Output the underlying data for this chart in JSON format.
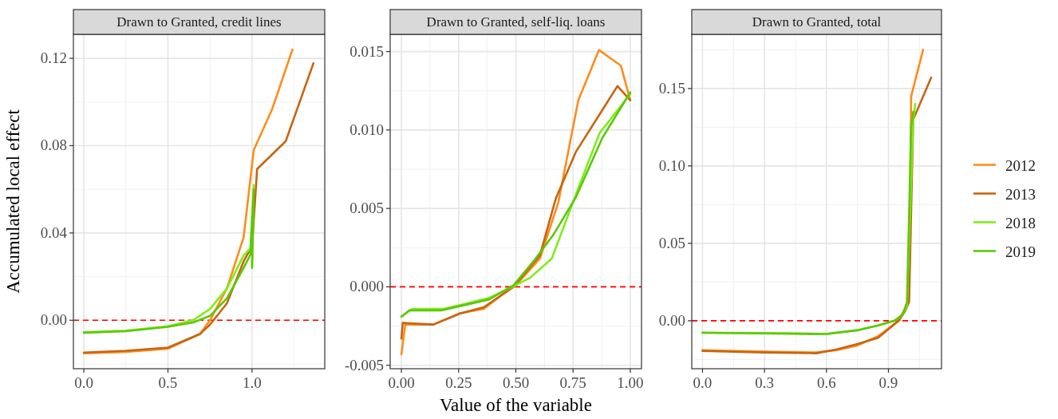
{
  "chart_data": [
    {
      "type": "line",
      "title": "Drawn to Granted, credit lines",
      "ylabel": "Accumulated local effect",
      "xlim": [
        -0.062,
        1.432
      ],
      "ylim": [
        -0.0222,
        0.131
      ],
      "xticks": [
        {
          "value": 0,
          "label": "0.0"
        },
        {
          "value": 0.5,
          "label": "0.5"
        },
        {
          "value": 1,
          "label": "1.0"
        }
      ],
      "yticks": [
        {
          "value": 0,
          "label": "0.00"
        },
        {
          "value": 0.04,
          "label": "0.04"
        },
        {
          "value": 0.08,
          "label": "0.08"
        },
        {
          "value": 0.12,
          "label": "0.12"
        }
      ],
      "grid": true,
      "legend": false,
      "ref_lines": [
        {
          "axis": "y",
          "value": 0,
          "color": "#ff0000",
          "line_style": "dashed"
        }
      ],
      "series": [
        {
          "color": "#ff8c1a",
          "x": [
            0,
            0.25,
            0.5,
            0.69,
            0.75,
            0.85,
            0.95,
            1.01,
            1.12,
            1.24
          ],
          "values": [
            -0.0151,
            -0.0145,
            -0.013,
            -0.0063,
            0,
            0.0145,
            0.038,
            0.078,
            0.0968,
            0.124
          ]
        },
        {
          "color": "#c8650f",
          "x": [
            0,
            0.25,
            0.5,
            0.69,
            0.75,
            0.85,
            0.95,
            1.0,
            1.03,
            1.2,
            1.365
          ],
          "values": [
            -0.0148,
            -0.014,
            -0.0125,
            -0.0063,
            -0.002,
            0.0077,
            0.027,
            0.034,
            0.0693,
            0.082,
            0.1178
          ]
        },
        {
          "color": "#80ec1a",
          "x": [
            0,
            0.25,
            0.5,
            0.65,
            0.75,
            0.85,
            0.95,
            0.99,
            1.01,
            1.0
          ],
          "values": [
            -0.0055,
            -0.0048,
            -0.0027,
            0,
            0.0052,
            0.0145,
            0.0297,
            0.033,
            0.062,
            0.025
          ]
        },
        {
          "color": "#5cc80a",
          "x": [
            0,
            0.25,
            0.5,
            0.65,
            0.75,
            0.85,
            0.95,
            0.99,
            1.01,
            1.0
          ],
          "values": [
            -0.0057,
            -0.005,
            -0.003,
            -0.001,
            0.002,
            0.01,
            0.024,
            0.03,
            0.06,
            0.024
          ]
        }
      ]
    },
    {
      "type": "line",
      "title": "Drawn to Granted, self-liq. loans",
      "xlabel": "Value of the variable",
      "xlim": [
        -0.049,
        1.049
      ],
      "ylim": [
        -0.00522,
        0.0161
      ],
      "xticks": [
        {
          "value": 0,
          "label": "0.00"
        },
        {
          "value": 0.25,
          "label": "0.25"
        },
        {
          "value": 0.5,
          "label": "0.50"
        },
        {
          "value": 0.75,
          "label": "0.75"
        },
        {
          "value": 1,
          "label": "1.00"
        }
      ],
      "yticks": [
        {
          "value": -0.005,
          "label": "-0.005"
        },
        {
          "value": 0,
          "label": "0.000"
        },
        {
          "value": 0.005,
          "label": "0.005"
        },
        {
          "value": 0.01,
          "label": "0.010"
        },
        {
          "value": 0.015,
          "label": "0.015"
        }
      ],
      "grid": true,
      "legend": false,
      "ref_lines": [
        {
          "axis": "y",
          "value": 0,
          "color": "#ff0000",
          "line_style": "dashed"
        }
      ],
      "series": [
        {
          "color": "#ff8c1a",
          "x": [
            0,
            0.017,
            0.14,
            0.256,
            0.36,
            0.44,
            0.5,
            0.605,
            0.686,
            0.773,
            0.863,
            0.959,
            1.0
          ],
          "values": [
            -0.0043,
            -0.0024,
            -0.0024,
            -0.0017,
            -0.0014,
            -0.0005,
            0.0001,
            0.0018,
            0.0054,
            0.0119,
            0.0151,
            0.0141,
            0.0119
          ]
        },
        {
          "color": "#c8650f",
          "x": [
            0,
            0.006,
            0.14,
            0.256,
            0.36,
            0.49,
            0.605,
            0.674,
            0.762,
            0.944,
            1.0
          ],
          "values": [
            -0.0033,
            -0.0023,
            -0.0024,
            -0.0017,
            -0.0013,
            0,
            0.002,
            0.0056,
            0.0086,
            0.0128,
            0.0119
          ]
        },
        {
          "color": "#80ec1a",
          "x": [
            0,
            0.047,
            0.186,
            0.384,
            0.5,
            0.564,
            0.657,
            0.773,
            0.866,
            1.0
          ],
          "values": [
            -0.0019,
            -0.0014,
            -0.0014,
            -0.0007,
            0.0001,
            0.0006,
            0.0018,
            0.0063,
            0.0098,
            0.0123
          ]
        },
        {
          "color": "#5cc80a",
          "x": [
            0,
            0.035,
            0.174,
            0.384,
            0.49,
            0.581,
            0.663,
            0.762,
            0.878,
            1.0
          ],
          "values": [
            -0.0019,
            -0.0015,
            -0.0015,
            -0.0008,
            0.0001,
            0.0017,
            0.0033,
            0.0057,
            0.0095,
            0.0124
          ]
        }
      ]
    },
    {
      "type": "line",
      "title": "Drawn to Granted, total",
      "xlim": [
        -0.052,
        1.157
      ],
      "ylim": [
        -0.031,
        0.185
      ],
      "xticks": [
        {
          "value": 0,
          "label": "0.0"
        },
        {
          "value": 0.3,
          "label": "0.3"
        },
        {
          "value": 0.6,
          "label": "0.6"
        },
        {
          "value": 0.9,
          "label": "0.9"
        }
      ],
      "yticks": [
        {
          "value": 0,
          "label": "0.00"
        },
        {
          "value": 0.05,
          "label": "0.05"
        },
        {
          "value": 0.1,
          "label": "0.10"
        },
        {
          "value": 0.15,
          "label": "0.15"
        }
      ],
      "grid": true,
      "legend": "right",
      "ref_lines": [
        {
          "axis": "y",
          "value": 0,
          "color": "#ff0000",
          "line_style": "dashed"
        }
      ],
      "series": [
        {
          "name": "2012",
          "color": "#ff8c1a",
          "x": [
            0,
            0.3,
            0.55,
            0.65,
            0.75,
            0.85,
            0.95,
            0.98,
            1.0,
            1.01,
            1.068
          ],
          "values": [
            -0.019,
            -0.02,
            -0.0205,
            -0.019,
            -0.016,
            -0.01,
            0,
            0.008,
            0.015,
            0.145,
            0.175
          ]
        },
        {
          "name": "2013",
          "color": "#c8650f",
          "x": [
            0,
            0.3,
            0.55,
            0.65,
            0.75,
            0.85,
            0.95,
            0.98,
            1.0,
            1.02,
            1.107
          ],
          "values": [
            -0.0195,
            -0.0205,
            -0.021,
            -0.0185,
            -0.015,
            -0.011,
            0,
            0.006,
            0.012,
            0.13,
            0.157
          ]
        },
        {
          "name": "2018",
          "color": "#80ec1a",
          "x": [
            0,
            0.3,
            0.6,
            0.75,
            0.85,
            0.93,
            0.97,
            0.99,
            1.02,
            1.03
          ],
          "values": [
            -0.0077,
            -0.008,
            -0.0085,
            -0.006,
            -0.003,
            0,
            0.004,
            0.01,
            0.13,
            0.14
          ]
        },
        {
          "name": "2019",
          "color": "#5cc80a",
          "x": [
            0,
            0.3,
            0.6,
            0.75,
            0.85,
            0.93,
            0.97,
            0.99,
            1.01,
            1.02
          ],
          "values": [
            -0.0078,
            -0.0082,
            -0.0086,
            -0.0062,
            -0.003,
            0,
            0.004,
            0.012,
            0.125,
            0.135
          ]
        }
      ]
    }
  ]
}
